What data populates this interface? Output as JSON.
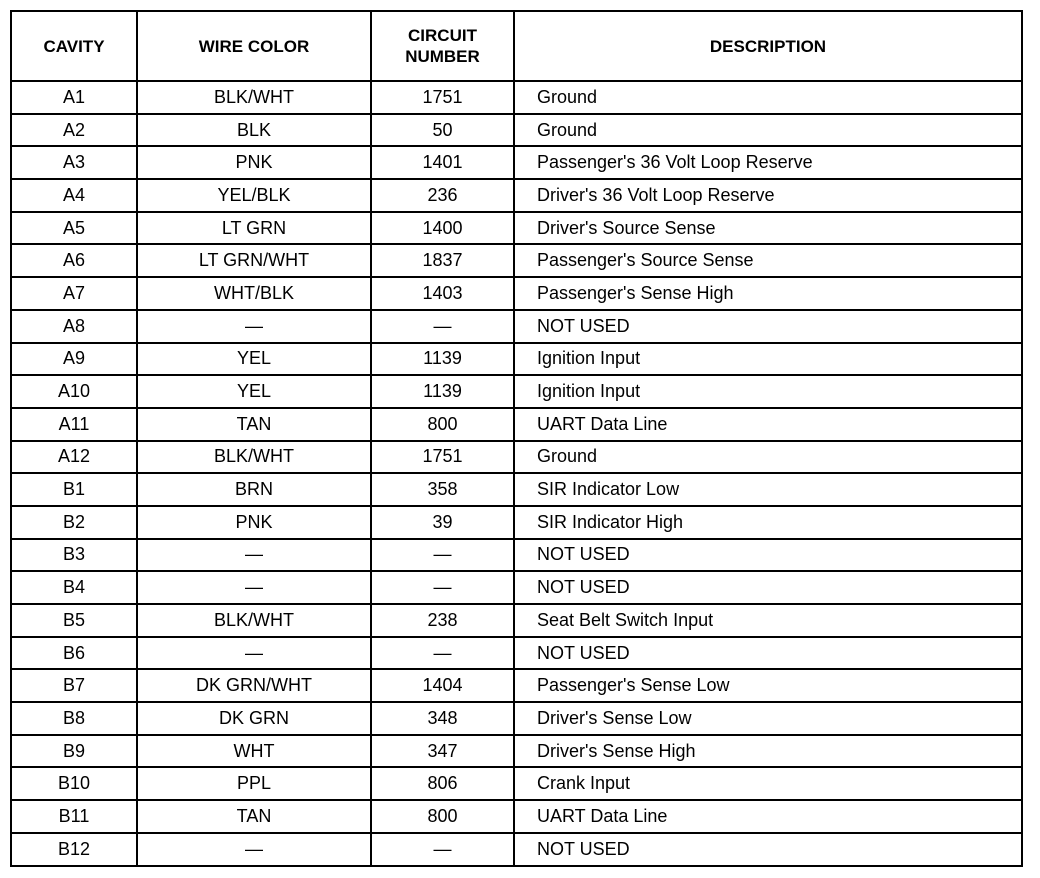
{
  "headers": {
    "cavity": "CAVITY",
    "wire_color": "WIRE COLOR",
    "circuit_line1": "CIRCUIT",
    "circuit_line2": "NUMBER",
    "description": "DESCRIPTION"
  },
  "rows": [
    {
      "cavity": "A1",
      "wire_color": "BLK/WHT",
      "circuit": "1751",
      "description": "Ground"
    },
    {
      "cavity": "A2",
      "wire_color": "BLK",
      "circuit": "50",
      "description": "Ground"
    },
    {
      "cavity": "A3",
      "wire_color": "PNK",
      "circuit": "1401",
      "description": "Passenger's 36 Volt Loop Reserve"
    },
    {
      "cavity": "A4",
      "wire_color": "YEL/BLK",
      "circuit": "236",
      "description": "Driver's 36 Volt Loop Reserve"
    },
    {
      "cavity": "A5",
      "wire_color": "LT GRN",
      "circuit": "1400",
      "description": "Driver's Source Sense"
    },
    {
      "cavity": "A6",
      "wire_color": "LT GRN/WHT",
      "circuit": "1837",
      "description": "Passenger's Source Sense"
    },
    {
      "cavity": "A7",
      "wire_color": "WHT/BLK",
      "circuit": "1403",
      "description": "Passenger's Sense High"
    },
    {
      "cavity": "A8",
      "wire_color": "—",
      "circuit": "—",
      "description": "NOT USED"
    },
    {
      "cavity": "A9",
      "wire_color": "YEL",
      "circuit": "1139",
      "description": "Ignition Input"
    },
    {
      "cavity": "A10",
      "wire_color": "YEL",
      "circuit": "1139",
      "description": "Ignition Input"
    },
    {
      "cavity": "A11",
      "wire_color": "TAN",
      "circuit": "800",
      "description": "UART Data Line"
    },
    {
      "cavity": "A12",
      "wire_color": "BLK/WHT",
      "circuit": "1751",
      "description": "Ground"
    },
    {
      "cavity": "B1",
      "wire_color": "BRN",
      "circuit": "358",
      "description": "SIR Indicator Low"
    },
    {
      "cavity": "B2",
      "wire_color": "PNK",
      "circuit": "39",
      "description": "SIR Indicator High"
    },
    {
      "cavity": "B3",
      "wire_color": "—",
      "circuit": "—",
      "description": "NOT USED"
    },
    {
      "cavity": "B4",
      "wire_color": "—",
      "circuit": "—",
      "description": "NOT USED"
    },
    {
      "cavity": "B5",
      "wire_color": "BLK/WHT",
      "circuit": "238",
      "description": "Seat Belt Switch Input"
    },
    {
      "cavity": "B6",
      "wire_color": "—",
      "circuit": "—",
      "description": "NOT USED"
    },
    {
      "cavity": "B7",
      "wire_color": "DK GRN/WHT",
      "circuit": "1404",
      "description": "Passenger's Sense Low"
    },
    {
      "cavity": "B8",
      "wire_color": "DK GRN",
      "circuit": "348",
      "description": "Driver's Sense Low"
    },
    {
      "cavity": "B9",
      "wire_color": "WHT",
      "circuit": "347",
      "description": "Driver's Sense High"
    },
    {
      "cavity": "B10",
      "wire_color": "PPL",
      "circuit": "806",
      "description": "Crank Input"
    },
    {
      "cavity": "B11",
      "wire_color": "TAN",
      "circuit": "800",
      "description": "UART Data Line"
    },
    {
      "cavity": "B12",
      "wire_color": "—",
      "circuit": "—",
      "description": "NOT USED"
    }
  ]
}
